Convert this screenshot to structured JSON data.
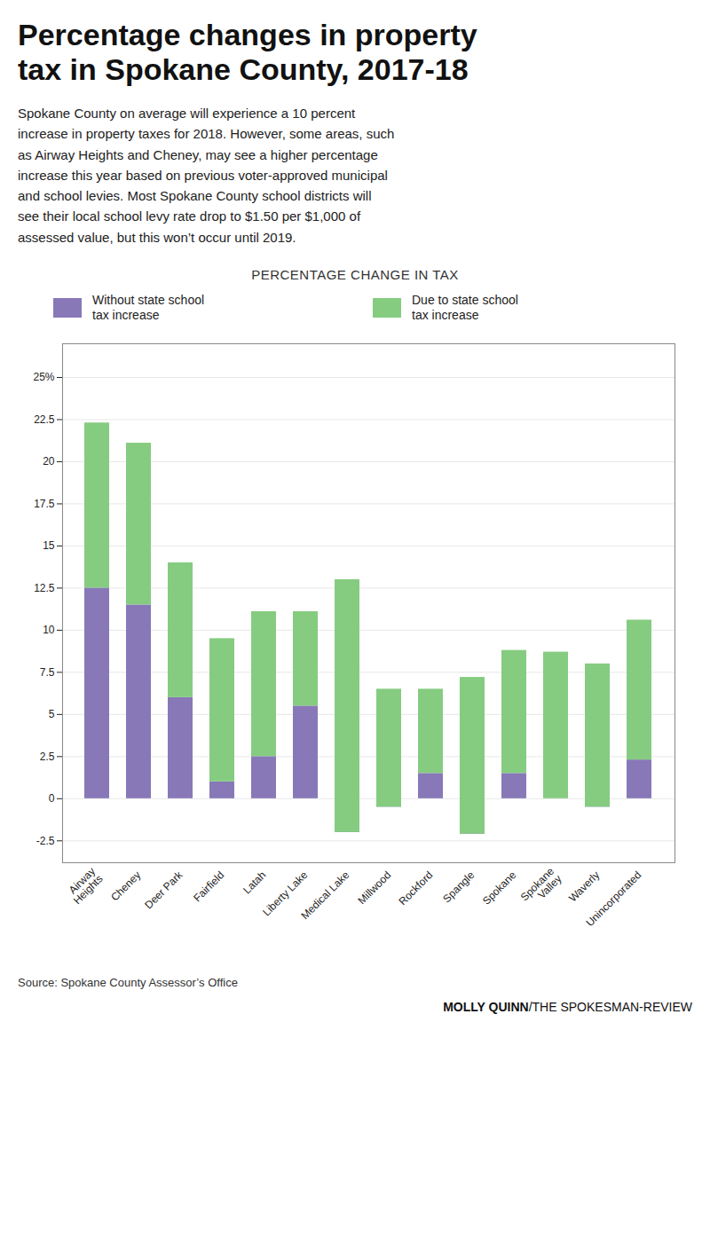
{
  "chart_data": {
    "type": "bar",
    "stacked": true,
    "title": "Percentage changes in property\ntax in Spokane County, 2017-18",
    "subtitle": "Spokane County on average will experience a 10 percent\nincrease in property taxes for 2018. However, some areas, such\nas Airway Heights and Cheney, may see a higher percentage\nincrease this year based on previous voter-approved municipal\nand school levies. Most Spokane County school districts will\nsee their local school levy rate drop to $1.50 per $1,000 of\nassessed value, but this won’t occur until 2019.",
    "annotations": [
      "PERCENTAGE CHANGE IN TAX",
      "Source: Spokane County Assessor’s Office",
      "MOLLY QUINN/THE SPOKESMAN-REVIEW"
    ],
    "categories": [
      "Airway\nHeights",
      "Cheney",
      "Deer Park",
      "Fairfield",
      "Latah",
      "Liberty Lake",
      "Medical Lake",
      "Millwood",
      "Rockford",
      "Spangle",
      "Spokane",
      "Spokane\nValley",
      "Waverly",
      "Unincorporated"
    ],
    "series": [
      {
        "name": "Without state school\ntax increase",
        "color": "#8878b8",
        "values": [
          12.5,
          11.5,
          6.0,
          1.0,
          2.5,
          5.5,
          -2.0,
          -0.5,
          1.5,
          -2.1,
          1.5,
          0.0,
          -0.5,
          2.3
        ]
      },
      {
        "name": "Due to state school\ntax increase",
        "color": "#85cc80",
        "values": [
          9.8,
          9.6,
          8.0,
          8.5,
          8.6,
          5.6,
          15.0,
          7.0,
          5.0,
          9.3,
          7.3,
          8.7,
          8.5,
          8.3
        ]
      }
    ],
    "ylim": [
      -3.8,
      27.0
    ],
    "yticks": [
      -2.5,
      0,
      2.5,
      5,
      7.5,
      10,
      12.5,
      15,
      17.5,
      20,
      22.5,
      {
        "value": 25,
        "label": "25%"
      }
    ],
    "grid": true,
    "legend": "top"
  }
}
